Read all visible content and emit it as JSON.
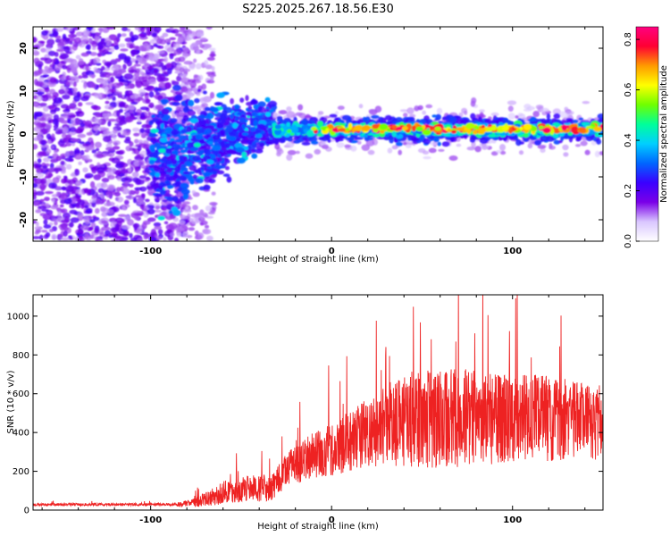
{
  "title": "S225.2025.267.18.56.E30",
  "chart_data": [
    {
      "type": "heatmap",
      "xlabel": "Height of straight line (km)",
      "ylabel": "Frequency (Hz)",
      "xlim": [
        -165,
        150
      ],
      "ylim": [
        -25,
        25
      ],
      "xticks": [
        -100,
        0,
        100
      ],
      "yticks": [
        -20,
        -10,
        0,
        10,
        20
      ],
      "xtick_labels": [
        "-100",
        "0",
        "100"
      ],
      "ytick_labels": [
        "-20",
        "-10",
        "0",
        "10",
        "20"
      ],
      "colorbar": {
        "label": "Normalized spectral amplitude",
        "range": [
          0,
          0.85
        ],
        "ticks": [
          0.0,
          0.2,
          0.4,
          0.6,
          0.8
        ],
        "tick_labels": [
          "0.0",
          "0.2",
          "0.4",
          "0.6",
          "0.8"
        ],
        "colormap": [
          "#ffffff",
          "#d9c6ff",
          "#7a00e8",
          "#3a00ff",
          "#0066ff",
          "#00cfff",
          "#00ff9a",
          "#6fff00",
          "#ffff00",
          "#ff9a00",
          "#ff0033",
          "#ff0080"
        ]
      },
      "description_trend": [
        {
          "x_range": [
            -165,
            -85
          ],
          "character": "broadband noise across all frequencies"
        },
        {
          "x_range": [
            -85,
            -35
          ],
          "character": "converging toward 0-5 Hz with scattered energy"
        },
        {
          "x_range": [
            -35,
            150
          ],
          "character": "narrow band centered near 1 Hz with high amplitude"
        }
      ]
    },
    {
      "type": "line",
      "xlabel": "Height of straight line (km)",
      "ylabel": "SNR (10 * v/v)",
      "xlim": [
        -165,
        150
      ],
      "ylim": [
        0,
        1110
      ],
      "xticks": [
        -100,
        0,
        100
      ],
      "yticks": [
        0,
        200,
        400,
        600,
        800,
        1000
      ],
      "xtick_labels": [
        "-100",
        "0",
        "100"
      ],
      "ytick_labels": [
        "0",
        "200",
        "400",
        "600",
        "800",
        "1000"
      ],
      "color": "#ee2222",
      "envelope_knots": {
        "x": [
          -165,
          -85,
          -75,
          -60,
          -45,
          -32,
          -25,
          -15,
          -5,
          5,
          15,
          25,
          40,
          60,
          80,
          100,
          120,
          140,
          150
        ],
        "base": [
          28,
          28,
          40,
          90,
          110,
          120,
          210,
          260,
          300,
          330,
          380,
          420,
          460,
          470,
          480,
          475,
          470,
          460,
          450
        ],
        "amp": [
          10,
          12,
          25,
          60,
          70,
          70,
          90,
          110,
          130,
          150,
          170,
          200,
          240,
          260,
          250,
          240,
          220,
          200,
          190
        ]
      }
    }
  ],
  "colors": {
    "signal_line": "#ee2222",
    "axis": "#000000",
    "background": "#ffffff"
  }
}
